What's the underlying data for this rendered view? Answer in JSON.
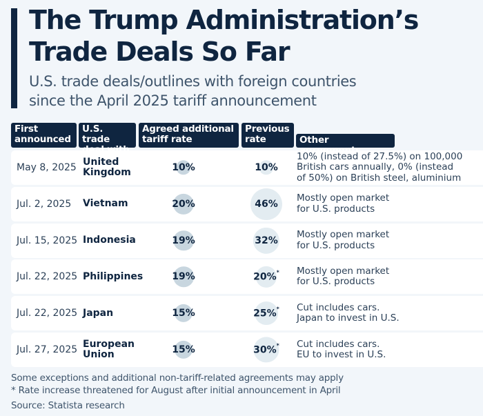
{
  "title_line1": "The Trump Administration’s",
  "title_line2": "Trade Deals So Far",
  "subtitle_line1": "U.S. trade deals/outlines with foreign countries",
  "subtitle_line2": "since the April 2025 tariff announcement",
  "headers": {
    "first_announced": [
      "First",
      "announced"
    ],
    "deal_with": [
      "U.S. trade",
      "deal with"
    ],
    "agreed_rate": [
      "Agreed additional",
      "tariff rate"
    ],
    "previous_rate": [
      "Previous",
      "rate"
    ],
    "other": "Other agreements"
  },
  "colors": {
    "navy": "#0f2540",
    "agreed_bubble": "#c8d6df",
    "previous_bubble": "#e3ecf1",
    "background": "#f2f6fa"
  },
  "chart_data": {
    "type": "table",
    "title": "The Trump Administration’s Trade Deals So Far",
    "subtitle": "U.S. trade deals/outlines with foreign countries since the April 2025 tariff announcement",
    "columns": [
      "First announced",
      "U.S. trade deal with",
      "Agreed additional tariff rate",
      "Previous rate",
      "Other agreements"
    ],
    "rows": [
      {
        "date": "May 8, 2025",
        "country": [
          "United",
          "Kingdom"
        ],
        "agreed": 10,
        "agreed_label": "10%",
        "previous": 10,
        "previous_label": "10%",
        "previous_asterisk": false,
        "other": [
          "10% (instead of 27.5%) on 100,000",
          "British cars annually, 0% (instead",
          "of 50%) on British steel, aluminium"
        ]
      },
      {
        "date": "Jul. 2, 2025",
        "country": [
          "Vietnam"
        ],
        "agreed": 20,
        "agreed_label": "20%",
        "previous": 46,
        "previous_label": "46%",
        "previous_asterisk": false,
        "other": [
          "Mostly open market",
          "for U.S. products"
        ]
      },
      {
        "date": "Jul. 15, 2025",
        "country": [
          "Indonesia"
        ],
        "agreed": 19,
        "agreed_label": "19%",
        "previous": 32,
        "previous_label": "32%",
        "previous_asterisk": false,
        "other": [
          "Mostly open market",
          "for U.S. products"
        ]
      },
      {
        "date": "Jul. 22, 2025",
        "country": [
          "Philippines"
        ],
        "agreed": 19,
        "agreed_label": "19%",
        "previous": 20,
        "previous_label": "20%",
        "previous_asterisk": true,
        "other": [
          "Mostly open market",
          "for U.S. products"
        ]
      },
      {
        "date": "Jul. 22, 2025",
        "country": [
          "Japan"
        ],
        "agreed": 15,
        "agreed_label": "15%",
        "previous": 25,
        "previous_label": "25%",
        "previous_asterisk": true,
        "other": [
          "Cut includes cars.",
          "Japan to invest in U.S."
        ]
      },
      {
        "date": "Jul. 27, 2025",
        "country": [
          "European",
          "Union"
        ],
        "agreed": 15,
        "agreed_label": "15%",
        "previous": 30,
        "previous_label": "30%",
        "previous_asterisk": true,
        "other": [
          "Cut includes cars.",
          "EU to invest in U.S."
        ]
      }
    ],
    "asterisk": "*"
  },
  "footer": {
    "note1": "Some exceptions and additional non-tariff-related agreements may apply",
    "note2": "* Rate increase threatened for August after initial announcement in April",
    "source": "Source: Statista research"
  }
}
